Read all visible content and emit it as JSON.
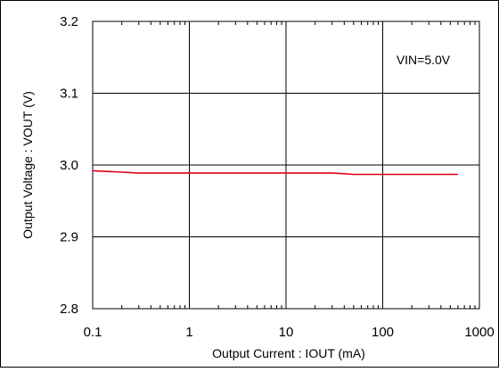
{
  "chart_data": {
    "type": "line",
    "xscale": "log",
    "xlabel": "Output Current : IOUT (mA)",
    "ylabel": "Output Voltage : VOUT (V)",
    "xlim": [
      0.1,
      1000
    ],
    "ylim": [
      2.8,
      3.2
    ],
    "xticks": [
      0.1,
      1,
      10,
      100,
      1000
    ],
    "xtick_labels": [
      "0.1",
      "1",
      "10",
      "100",
      "1000"
    ],
    "yticks": [
      2.8,
      2.9,
      3.0,
      3.1,
      3.2
    ],
    "ytick_labels": [
      "2.8",
      "2.9",
      "3.0",
      "3.1",
      "3.2"
    ],
    "grid": true,
    "annotation": "VIN=5.0V",
    "series": [
      {
        "color": "#e0001b",
        "x": [
          0.1,
          0.3,
          1,
          10,
          30,
          50,
          100,
          600
        ],
        "y": [
          2.992,
          2.989,
          2.989,
          2.989,
          2.989,
          2.987,
          2.987,
          2.987
        ]
      }
    ]
  }
}
